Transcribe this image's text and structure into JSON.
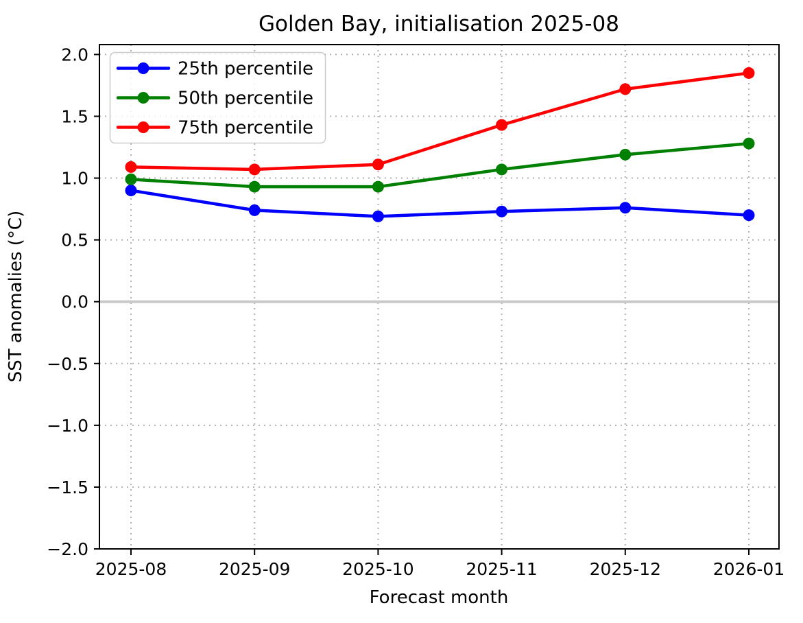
{
  "title": "Golden Bay, initialisation 2025-08",
  "chart_data": {
    "type": "line",
    "title": "Golden Bay, initialisation 2025-08",
    "xlabel": "Forecast month",
    "ylabel": "SST anomalies (°C)",
    "categories": [
      "2025-08",
      "2025-09",
      "2025-10",
      "2025-11",
      "2025-12",
      "2026-01"
    ],
    "series": [
      {
        "name": "25th percentile",
        "color": "#0000ff",
        "values": [
          0.9,
          0.74,
          0.69,
          0.73,
          0.76,
          0.7
        ]
      },
      {
        "name": "50th percentile",
        "color": "#008000",
        "values": [
          0.99,
          0.93,
          0.93,
          1.07,
          1.19,
          1.28
        ]
      },
      {
        "name": "75th percentile",
        "color": "#ff0000",
        "values": [
          1.09,
          1.07,
          1.11,
          1.43,
          1.72,
          1.85
        ]
      }
    ],
    "ylim": [
      -2.0,
      2.08
    ],
    "yticks": [
      2.0,
      1.5,
      1.0,
      0.5,
      0.0,
      -0.5,
      -1.0,
      -1.5,
      -2.0
    ],
    "ytick_labels": [
      "2.0",
      "1.5",
      "1.0",
      "0.5",
      "0.0",
      "−0.5",
      "−1.0",
      "−1.5",
      "−2.0"
    ],
    "grid": true,
    "grid_style": "dotted",
    "grid_color": "#b0b0b0",
    "zero_line": true,
    "zero_line_color": "#c8c8c8",
    "background_color": "#ffffff",
    "frame_color": "#000000",
    "legend_position": "upper left"
  }
}
